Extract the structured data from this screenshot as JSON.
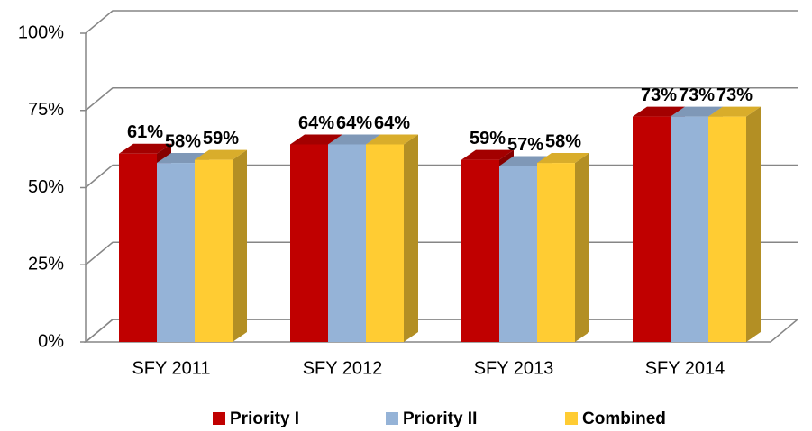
{
  "chart_data": {
    "type": "bar3d",
    "categories": [
      "SFY 2011",
      "SFY 2012",
      "SFY 2013",
      "SFY 2014"
    ],
    "series": [
      {
        "name": "Priority I",
        "color": "#c00000",
        "values": [
          61,
          64,
          59,
          73
        ],
        "value_labels": [
          "61%",
          "64%",
          "59%",
          "73%"
        ]
      },
      {
        "name": "Priority II",
        "color": "#95b3d7",
        "values": [
          58,
          64,
          57,
          73
        ],
        "value_labels": [
          "58%",
          "64%",
          "57%",
          "73%"
        ]
      },
      {
        "name": "Combined",
        "color": "#ffcc33",
        "values": [
          59,
          64,
          58,
          73
        ],
        "value_labels": [
          "59%",
          "64%",
          "58%",
          "73%"
        ]
      }
    ],
    "ylim": [
      0,
      100
    ],
    "yticks": [
      {
        "value": 0,
        "label": "0%"
      },
      {
        "value": 25,
        "label": "25%"
      },
      {
        "value": 50,
        "label": "50%"
      },
      {
        "value": 75,
        "label": "75%"
      },
      {
        "value": 100,
        "label": "100%"
      }
    ],
    "grid": true,
    "legend": "bottom"
  }
}
